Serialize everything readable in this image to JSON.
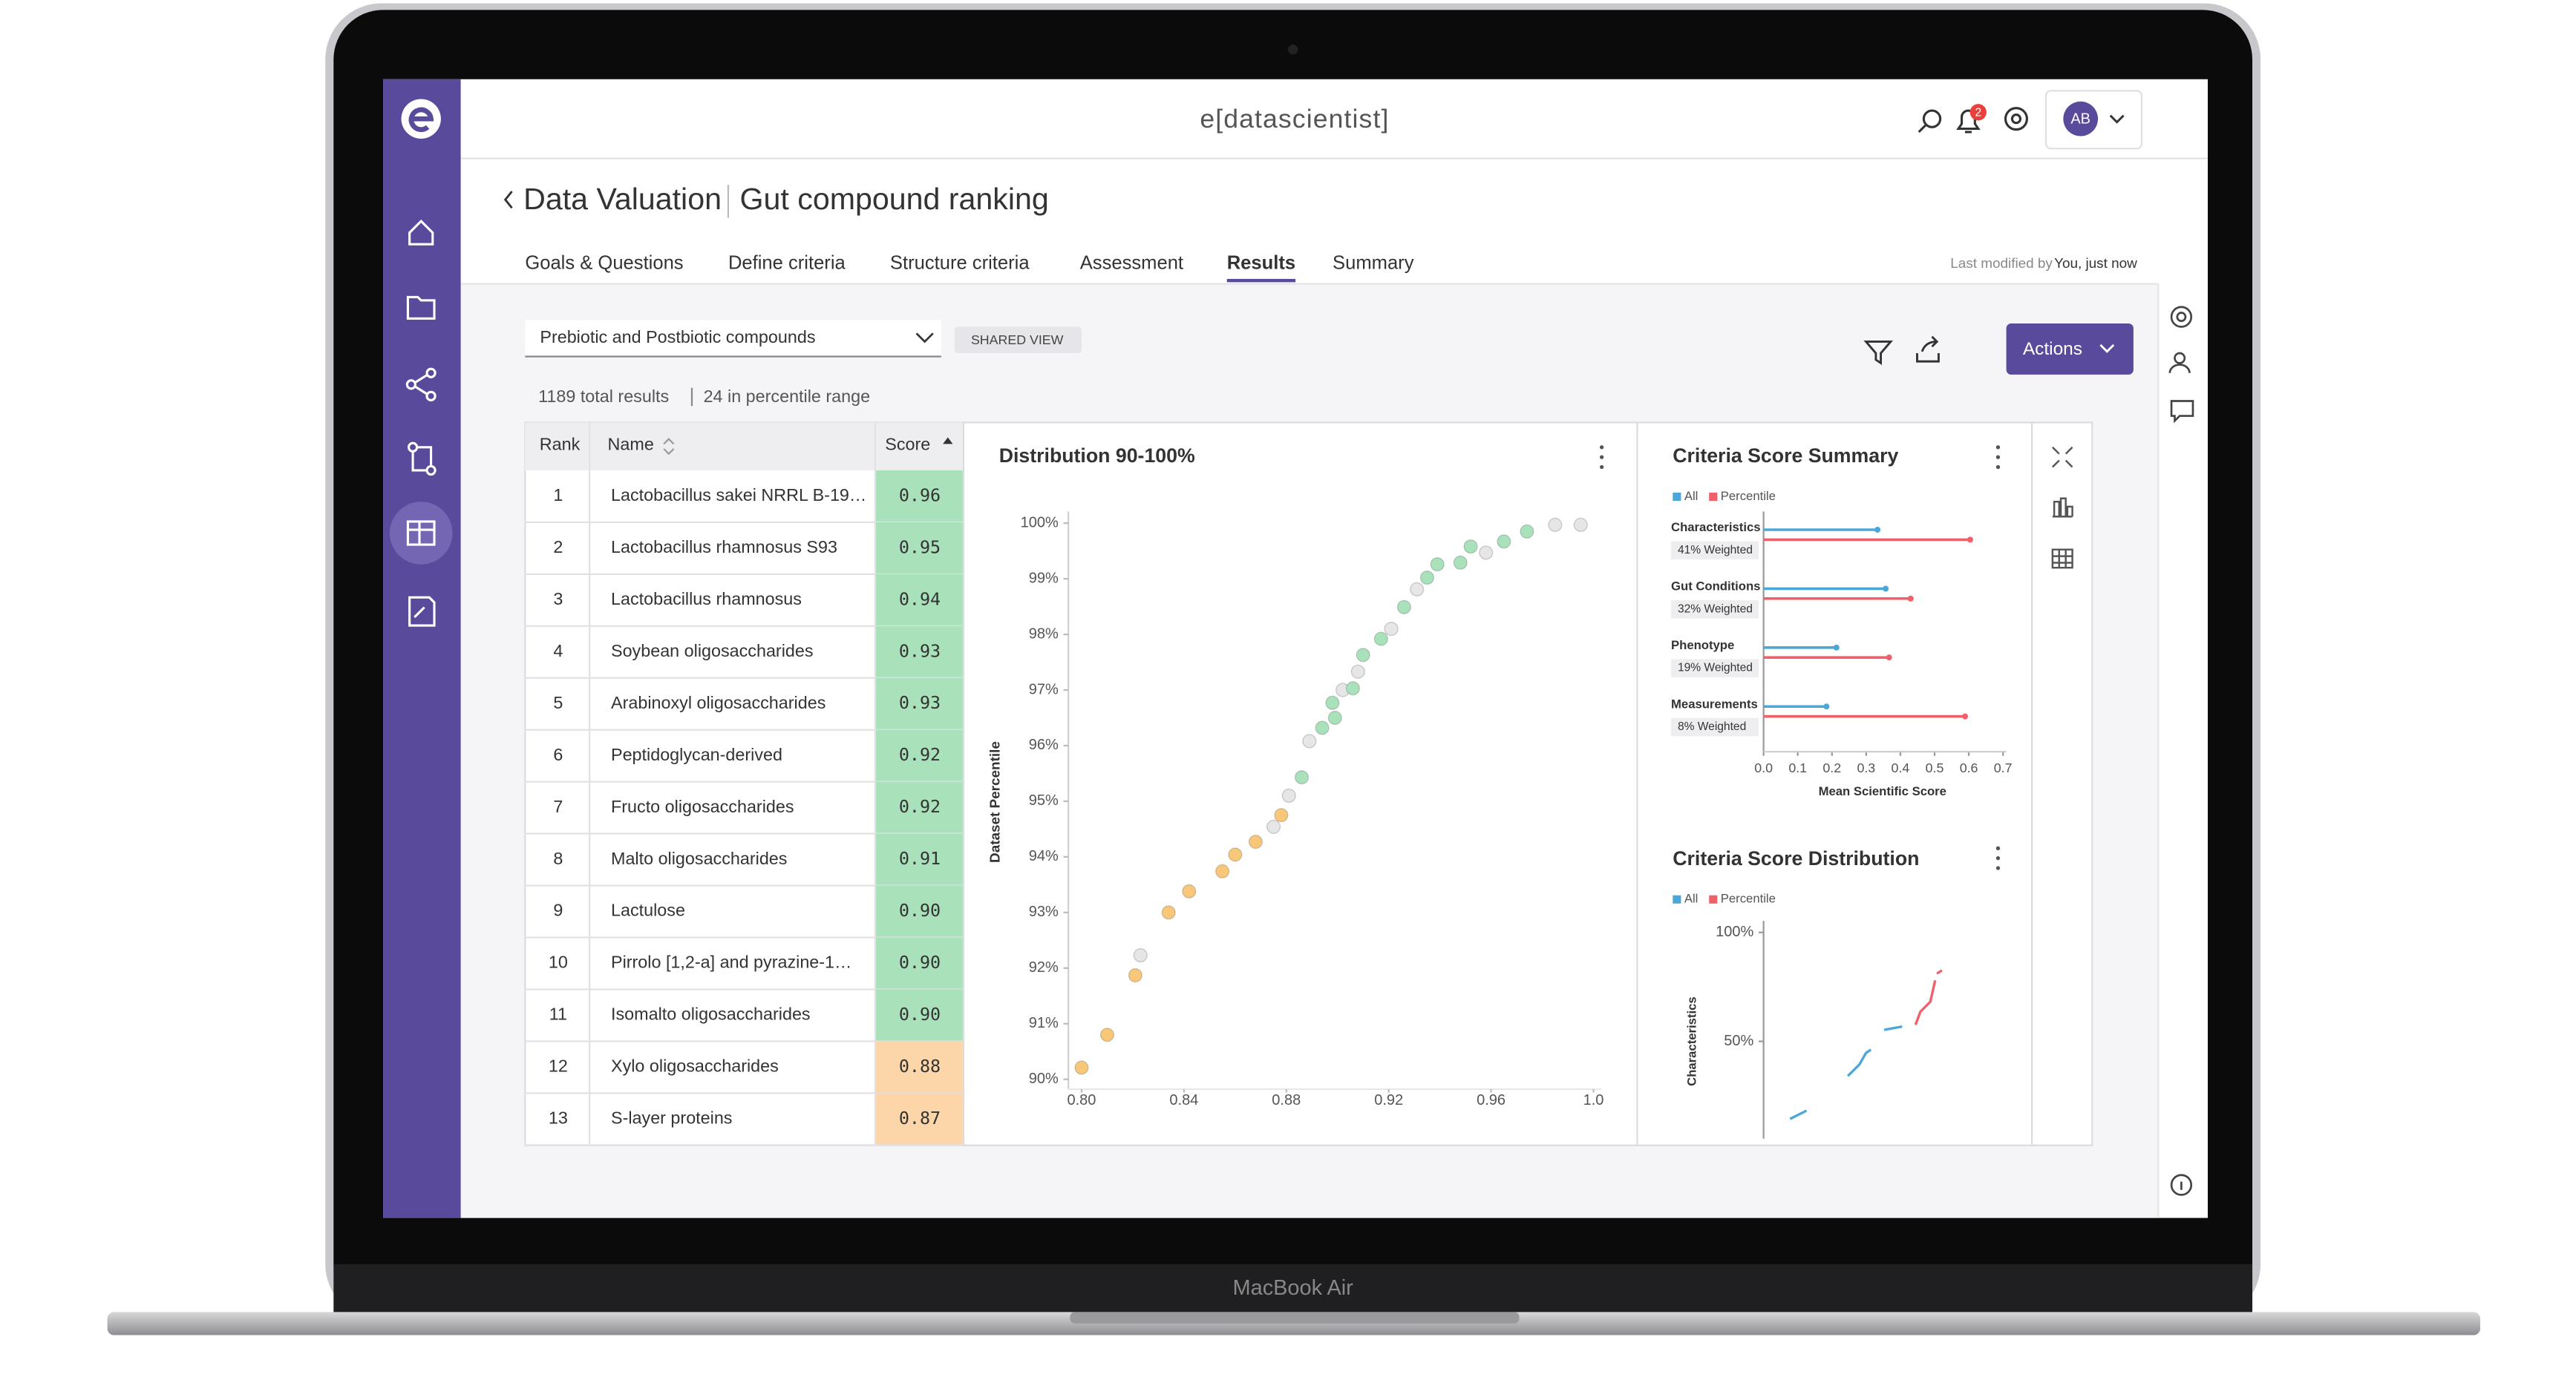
{
  "device_label": "MacBook Air",
  "header": {
    "logo": "e[datascientist]",
    "notification_count": 2,
    "user_initials": "AB"
  },
  "breadcrumb": {
    "section": "Data Valuation",
    "title": "Gut compound ranking"
  },
  "tabs": [
    "Goals & Questions",
    "Define criteria",
    "Structure criteria",
    "Assessment",
    "Results",
    "Summary"
  ],
  "active_tab": "Results",
  "last_modified": {
    "label": "Last modified by",
    "who": "You, just now"
  },
  "toolbar": {
    "dataset": "Prebiotic and Postbiotic compounds",
    "view": "SHARED VIEW",
    "actions": "Actions"
  },
  "results": {
    "total": "1189 total results",
    "in_range": "24 in percentile range"
  },
  "table": {
    "columns": [
      "Rank",
      "Name",
      "Score"
    ],
    "rows": [
      {
        "rank": 1,
        "name": "Lactobacillus sakei NRRL B-19…",
        "score": "0.96",
        "color": "#a9e1bb"
      },
      {
        "rank": 2,
        "name": "Lactobacillus rhamnosus S93",
        "score": "0.95",
        "color": "#a9e1bb"
      },
      {
        "rank": 3,
        "name": "Lactobacillus rhamnosus",
        "score": "0.94",
        "color": "#a9e1bb"
      },
      {
        "rank": 4,
        "name": "Soybean oligosaccharides",
        "score": "0.93",
        "color": "#a9e1bb"
      },
      {
        "rank": 5,
        "name": "Arabinoxyl oligosaccharides",
        "score": "0.93",
        "color": "#a9e1bb"
      },
      {
        "rank": 6,
        "name": "Peptidoglycan-derived",
        "score": "0.92",
        "color": "#a9e1bb"
      },
      {
        "rank": 7,
        "name": "Fructo oligosaccharides",
        "score": "0.92",
        "color": "#a9e1bb"
      },
      {
        "rank": 8,
        "name": "Malto oligosaccharides",
        "score": "0.91",
        "color": "#a9e1bb"
      },
      {
        "rank": 9,
        "name": "Lactulose",
        "score": "0.90",
        "color": "#a9e1bb"
      },
      {
        "rank": 10,
        "name": "Pirrolo [1,2-a] and pyrazine-1…",
        "score": "0.90",
        "color": "#a9e1bb"
      },
      {
        "rank": 11,
        "name": "Isomalto oligosaccharides",
        "score": "0.90",
        "color": "#a9e1bb"
      },
      {
        "rank": 12,
        "name": "Xylo oligosaccharides",
        "score": "0.88",
        "color": "#fcd5a8"
      },
      {
        "rank": 13,
        "name": "S-layer proteins",
        "score": "0.87",
        "color": "#fcd5a8"
      }
    ]
  },
  "chart_data": [
    {
      "type": "scatter",
      "title": "Distribution 90-100%",
      "y_label": "Dataset Percentile",
      "xlim": [
        0.8,
        1.0
      ],
      "ylim": [
        90,
        100
      ],
      "xticks": [
        {
          "value": 0.8,
          "label": "0.80"
        },
        0.84,
        0.88,
        0.92,
        0.96,
        {
          "value": 1,
          "label": "1.0"
        }
      ],
      "yticks": [
        {
          "value": 90,
          "label": "90%"
        },
        {
          "value": 91,
          "label": "91%"
        },
        {
          "value": 92,
          "label": "92%"
        },
        {
          "value": 93,
          "label": "93%"
        },
        {
          "value": 94,
          "label": "94%"
        },
        {
          "value": 95,
          "label": "95%"
        },
        {
          "value": 96,
          "label": "96%"
        },
        {
          "value": 97,
          "label": "97%"
        },
        {
          "value": 98,
          "label": "98%"
        },
        {
          "value": 99,
          "label": "99%"
        },
        {
          "value": 100,
          "label": "100%"
        }
      ],
      "series": [
        {
          "color": "#f9c77a",
          "x": [
            0.8,
            0.81,
            0.821,
            0.834,
            0.842,
            0.855,
            0.86,
            0.868,
            0.878
          ],
          "values": [
            90.21,
            90.8,
            91.87,
            93.0,
            93.38,
            93.74,
            94.04,
            94.27,
            94.75
          ]
        },
        {
          "color": "#e6e6e6",
          "x": [
            0.823,
            0.875,
            0.881,
            0.889,
            0.902,
            0.908,
            0.921,
            0.931,
            0.958,
            0.985,
            0.995
          ],
          "values": [
            92.23,
            94.54,
            95.1,
            96.08,
            97.0,
            97.33,
            98.1,
            98.81,
            99.47,
            99.97,
            99.97
          ]
        },
        {
          "color": "#a9e1bb",
          "x": [
            0.886,
            0.894,
            0.899,
            0.898,
            0.906,
            0.91,
            0.917,
            0.926,
            0.935,
            0.939,
            0.948,
            0.952,
            0.965,
            0.974
          ],
          "values": [
            95.43,
            96.32,
            96.5,
            96.77,
            97.03,
            97.63,
            97.92,
            98.49,
            99.02,
            99.26,
            99.29,
            99.58,
            99.67,
            99.85
          ]
        }
      ]
    },
    {
      "type": "bar",
      "orientation": "horizontal",
      "title": "Criteria Score Summary",
      "categories": [
        "Characteristics",
        "Gut Conditions",
        "Phenotype",
        "Measurements"
      ],
      "category_notes": [
        "41% Weighted",
        "32% Weighted",
        "19% Weighted",
        "8% Weighted"
      ],
      "x_label": "Mean Scientific Score",
      "xlim": [
        0,
        0.7
      ],
      "xticks": [
        {
          "value": 0,
          "label": "0.0"
        },
        0.1,
        0.2,
        0.3,
        0.4,
        0.5,
        0.6,
        0.7
      ],
      "series": [
        {
          "name": "All",
          "color": "#4aa8d8",
          "values": [
            0.333,
            0.357,
            0.213,
            0.184
          ]
        },
        {
          "name": "Percentile",
          "color": "#f0606a",
          "values": [
            0.604,
            0.43,
            0.367,
            0.589
          ]
        }
      ]
    },
    {
      "type": "line",
      "title": "Criteria Score Distribution",
      "y_label": "Characteristics",
      "xlim": [
        0,
        1
      ],
      "ylim": [
        0,
        100
      ],
      "yticks": [
        {
          "value": 100,
          "label": "100%"
        },
        {
          "value": 50,
          "label": "50%"
        }
      ],
      "series": [
        {
          "name": "All",
          "color": "#4aa8d8",
          "x": [
            0.109,
            0.177,
            0.26,
            0.347,
            0.395,
            0.422,
            0.442,
            0.47,
            0.497,
            0.571
          ],
          "values": [
            14.4,
            18.2,
            null,
            34.1,
            39.4,
            44.7,
            46.2,
            null,
            55.3,
            56.8
          ]
        },
        {
          "name": "Percentile",
          "color": "#f0606a",
          "x": [
            0.626,
            0.646,
            0.687,
            0.707,
            0.71,
            0.714,
            0.735
          ],
          "values": [
            57.6,
            63.6,
            68.2,
            78.0,
            null,
            81.1,
            82.6
          ]
        }
      ]
    }
  ]
}
